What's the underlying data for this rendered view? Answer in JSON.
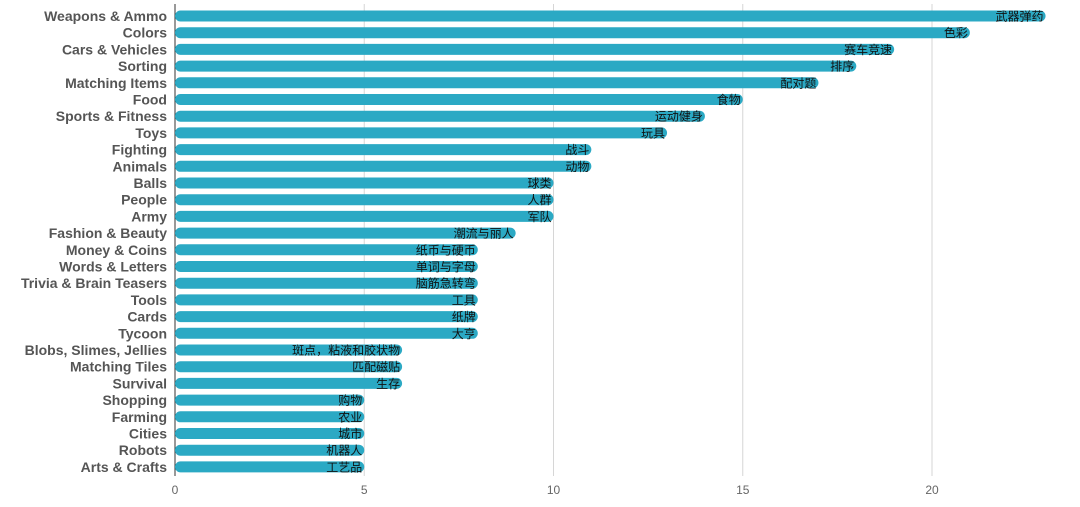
{
  "chart_data": {
    "type": "bar",
    "orientation": "horizontal",
    "bar_color": "#2ba9c4",
    "gridline_color": "#d6d6d6",
    "xlim": [
      0,
      23
    ],
    "xticks": [
      0,
      5,
      10,
      15,
      20
    ],
    "grid": true,
    "title": "",
    "xlabel": "",
    "ylabel": "",
    "categories": [
      "Weapons & Ammo",
      "Colors",
      "Cars & Vehicles",
      "Sorting",
      "Matching Items",
      "Food",
      "Sports & Fitness",
      "Toys",
      "Fighting",
      "Animals",
      "Balls",
      "People",
      "Army",
      "Fashion & Beauty",
      "Money & Coins",
      "Words & Letters",
      "Trivia & Brain Teasers",
      "Tools",
      "Cards",
      "Tycoon",
      "Blobs, Slimes, Jellies",
      "Matching Tiles",
      "Survival",
      "Shopping",
      "Farming",
      "Cities",
      "Robots",
      "Arts & Crafts"
    ],
    "values": [
      23,
      21,
      19,
      18,
      17,
      15,
      14,
      13,
      11,
      11,
      10,
      10,
      10,
      9,
      8,
      8,
      8,
      8,
      8,
      8,
      6,
      6,
      6,
      5,
      5,
      5,
      5,
      5
    ],
    "data_labels": [
      "武器弹药",
      "色彩",
      "赛车竞速",
      "排序",
      "配对题",
      "食物",
      "运动健身",
      "玩具",
      "战斗",
      "动物",
      "球类",
      "人群",
      "军队",
      "潮流与丽人",
      "纸币与硬币",
      "单词与字母",
      "脑筋急转弯",
      "工具",
      "纸牌",
      "大亨",
      "斑点，粘液和胶状物",
      "匹配磁贴",
      "生存",
      "购物",
      "农业",
      "城市",
      "机器人",
      "工艺品"
    ]
  }
}
